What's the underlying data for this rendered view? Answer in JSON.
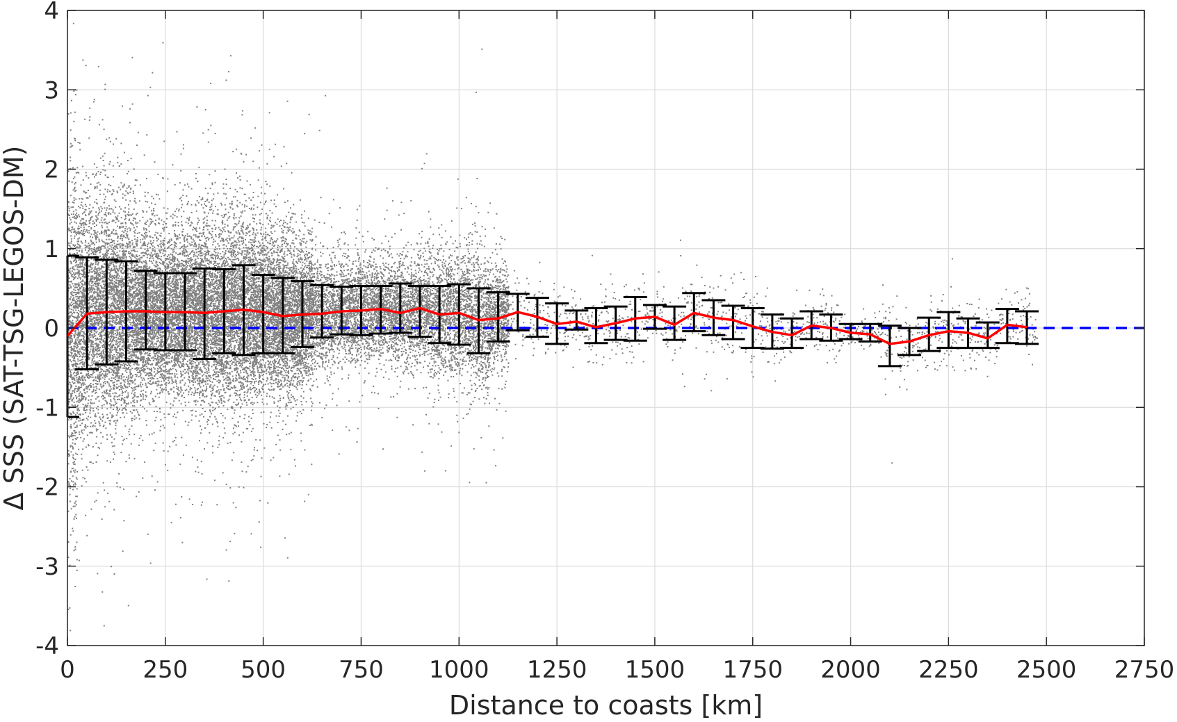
{
  "chart_data": {
    "type": "scatter",
    "title": "",
    "xlabel": "Distance to coasts [km]",
    "ylabel": "Δ SSS (SAT-TSG-LEGOS-DM)",
    "xlim": [
      0,
      2750
    ],
    "ylim": [
      -4,
      4
    ],
    "xticks": [
      0,
      250,
      500,
      750,
      1000,
      1250,
      1500,
      1750,
      2000,
      2250,
      2500,
      2750
    ],
    "yticks": [
      -4,
      -3,
      -2,
      -1,
      0,
      1,
      2,
      3,
      4
    ],
    "grid": true,
    "legend": "none",
    "colors": {
      "scatter": "#808080",
      "mean_line": "#ff0000",
      "error_bars": "#000000",
      "zero_line": "#0000ff",
      "grid": "#dcdcdc"
    },
    "zero_reference": {
      "style": "dashed",
      "value": 0
    },
    "binned_stats": {
      "x": [
        0,
        50,
        100,
        150,
        200,
        250,
        300,
        350,
        400,
        450,
        500,
        550,
        600,
        650,
        700,
        750,
        800,
        850,
        900,
        950,
        1000,
        1050,
        1100,
        1150,
        1200,
        1250,
        1300,
        1350,
        1400,
        1450,
        1500,
        1550,
        1600,
        1650,
        1700,
        1750,
        1800,
        1850,
        1900,
        1950,
        2000,
        2050,
        2100,
        2150,
        2200,
        2250,
        2300,
        2350,
        2400,
        2450
      ],
      "mean": [
        -0.1,
        0.18,
        0.2,
        0.21,
        0.21,
        0.2,
        0.2,
        0.19,
        0.21,
        0.23,
        0.2,
        0.15,
        0.17,
        0.18,
        0.21,
        0.22,
        0.24,
        0.19,
        0.25,
        0.17,
        0.19,
        0.1,
        0.12,
        0.2,
        0.14,
        0.05,
        0.08,
        0.01,
        0.06,
        0.12,
        0.14,
        0.04,
        0.19,
        0.13,
        0.1,
        0.02,
        -0.05,
        -0.09,
        0.03,
        0.0,
        -0.06,
        -0.08,
        -0.2,
        -0.17,
        -0.09,
        -0.04,
        -0.06,
        -0.13,
        0.04,
        0.01
      ],
      "upper": [
        0.91,
        0.89,
        0.86,
        0.84,
        0.72,
        0.69,
        0.69,
        0.75,
        0.74,
        0.79,
        0.67,
        0.63,
        0.59,
        0.54,
        0.52,
        0.53,
        0.53,
        0.56,
        0.53,
        0.53,
        0.55,
        0.5,
        0.45,
        0.43,
        0.38,
        0.31,
        0.22,
        0.25,
        0.27,
        0.39,
        0.29,
        0.27,
        0.44,
        0.35,
        0.28,
        0.25,
        0.17,
        0.12,
        0.21,
        0.17,
        0.05,
        0.05,
        0.03,
        0.0,
        0.13,
        0.2,
        0.12,
        0.07,
        0.24,
        0.21
      ],
      "lower": [
        -1.12,
        -0.52,
        -0.46,
        -0.42,
        -0.27,
        -0.28,
        -0.28,
        -0.39,
        -0.32,
        -0.34,
        -0.32,
        -0.32,
        -0.24,
        -0.12,
        -0.08,
        -0.09,
        -0.07,
        -0.06,
        -0.11,
        -0.19,
        -0.21,
        -0.32,
        -0.17,
        -0.03,
        -0.11,
        -0.2,
        -0.02,
        -0.19,
        -0.15,
        -0.16,
        -0.01,
        -0.15,
        -0.04,
        -0.09,
        -0.14,
        -0.25,
        -0.26,
        -0.25,
        -0.14,
        -0.16,
        -0.14,
        -0.17,
        -0.48,
        -0.34,
        -0.29,
        -0.25,
        -0.25,
        -0.25,
        -0.19,
        -0.2
      ]
    }
  }
}
